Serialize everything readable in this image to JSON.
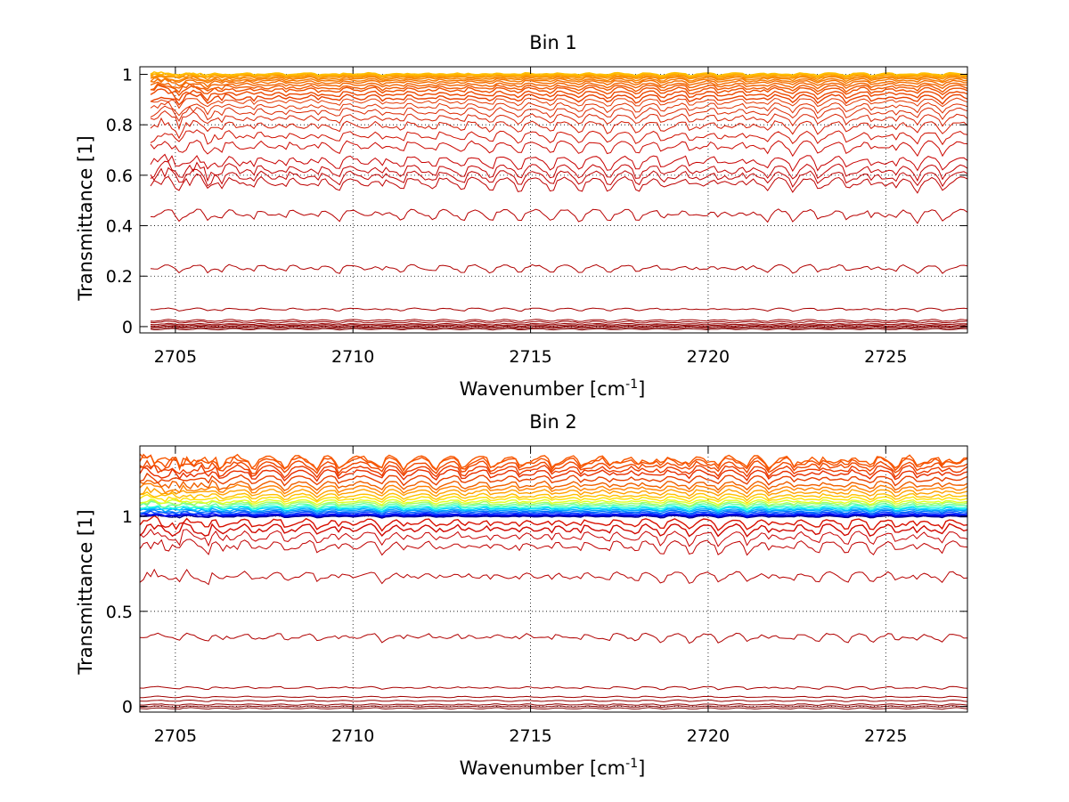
{
  "chart_data": [
    {
      "type": "line",
      "title": "Bin 1",
      "xlabel": "Wavenumber [cm",
      "xlabel_sup": "-1",
      "xlabel_end": "]",
      "ylabel": "Transmittance [1]",
      "xlim": [
        2704,
        2727.3
      ],
      "ylim": [
        -0.025,
        1.03
      ],
      "xticks": [
        2705,
        2710,
        2715,
        2720,
        2725
      ],
      "xticklabels": [
        "2705",
        "2710",
        "2715",
        "2720",
        "2725"
      ],
      "yticks": [
        0,
        0.2,
        0.4,
        0.6,
        0.8,
        1
      ],
      "yticklabels": [
        "0",
        "0.2",
        "0.4",
        "0.6",
        "0.8",
        "1"
      ],
      "grid": true,
      "x_start": 2704.3,
      "x_end": 2727.3,
      "num_points": 230,
      "series": [
        {
          "level": -0.01,
          "color": "#800000",
          "amp": 0.002
        },
        {
          "level": -0.005,
          "color": "#880000",
          "amp": 0.002
        },
        {
          "level": 0.0,
          "color": "#8b0000",
          "amp": 0.002
        },
        {
          "level": 0.005,
          "color": "#900000",
          "amp": 0.002
        },
        {
          "level": 0.01,
          "color": "#950000",
          "amp": 0.002
        },
        {
          "level": 0.018,
          "color": "#990000",
          "amp": 0.003
        },
        {
          "level": 0.025,
          "color": "#a00000",
          "amp": 0.003
        },
        {
          "level": 0.07,
          "color": "#a80000",
          "amp": 0.003
        },
        {
          "level": 0.235,
          "color": "#b00000",
          "amp": 0.008
        },
        {
          "level": 0.45,
          "color": "#b80000",
          "amp": 0.012
        },
        {
          "level": 0.575,
          "color": "#be0000",
          "amp": 0.014
        },
        {
          "level": 0.6,
          "color": "#c00000",
          "amp": 0.014
        },
        {
          "level": 0.625,
          "color": "#c40000",
          "amp": 0.014
        },
        {
          "level": 0.66,
          "color": "#c80000",
          "amp": 0.014
        },
        {
          "level": 0.72,
          "color": "#cc0800",
          "amp": 0.013
        },
        {
          "level": 0.76,
          "color": "#d01000",
          "amp": 0.012
        },
        {
          "level": 0.8,
          "color": "#d41800",
          "amp": 0.012
        },
        {
          "level": 0.83,
          "color": "#d82000",
          "amp": 0.01
        },
        {
          "level": 0.855,
          "color": "#dc2800",
          "amp": 0.01
        },
        {
          "level": 0.875,
          "color": "#e03000",
          "amp": 0.009
        },
        {
          "level": 0.895,
          "color": "#e43800",
          "amp": 0.008
        },
        {
          "level": 0.91,
          "color": "#e84000",
          "amp": 0.008
        },
        {
          "level": 0.925,
          "color": "#ec4800",
          "amp": 0.007
        },
        {
          "level": 0.94,
          "color": "#ee5000",
          "amp": 0.007
        },
        {
          "level": 0.95,
          "color": "#f05a00",
          "amp": 0.006
        },
        {
          "level": 0.96,
          "color": "#f26400",
          "amp": 0.005
        },
        {
          "level": 0.97,
          "color": "#f46e00",
          "amp": 0.005
        },
        {
          "level": 0.978,
          "color": "#f67800",
          "amp": 0.004
        },
        {
          "level": 0.985,
          "color": "#f88400",
          "amp": 0.004
        },
        {
          "level": 0.99,
          "color": "#fa9000",
          "amp": 0.003
        },
        {
          "level": 0.995,
          "color": "#fc9c00",
          "amp": 0.003
        },
        {
          "level": 0.998,
          "color": "#fda800",
          "amp": 0.003
        },
        {
          "level": 1.0,
          "color": "#feb400",
          "amp": 0.003
        },
        {
          "level": 1.003,
          "color": "#ffc000",
          "amp": 0.003
        }
      ]
    },
    {
      "type": "line",
      "title": "Bin 2",
      "xlabel": "Wavenumber [cm",
      "xlabel_sup": "-1",
      "xlabel_end": "]",
      "ylabel": "Transmittance [1]",
      "xlim": [
        2704,
        2727.3
      ],
      "ylim": [
        -0.03,
        1.37
      ],
      "xticks": [
        2705,
        2710,
        2715,
        2720,
        2725
      ],
      "xticklabels": [
        "2705",
        "2710",
        "2715",
        "2720",
        "2725"
      ],
      "yticks": [
        0,
        0.5,
        1
      ],
      "yticklabels": [
        "0",
        "0.5",
        "1"
      ],
      "grid": true,
      "x_start": 2704,
      "x_end": 2727.3,
      "num_points": 230,
      "series": [
        {
          "level": -0.01,
          "color": "#800000",
          "amp": 0.003
        },
        {
          "level": 0.0,
          "color": "#880000",
          "amp": 0.003
        },
        {
          "level": 0.01,
          "color": "#900000",
          "amp": 0.003
        },
        {
          "level": 0.03,
          "color": "#980000",
          "amp": 0.003
        },
        {
          "level": 0.05,
          "color": "#a00000",
          "amp": 0.003
        },
        {
          "level": 0.1,
          "color": "#a80000",
          "amp": 0.004
        },
        {
          "level": 0.37,
          "color": "#b00000",
          "amp": 0.012
        },
        {
          "level": 0.69,
          "color": "#b80000",
          "amp": 0.014
        },
        {
          "level": 0.85,
          "color": "#c00000",
          "amp": 0.018
        },
        {
          "level": 0.9,
          "color": "#c80000",
          "amp": 0.018
        },
        {
          "level": 0.94,
          "color": "#d00800",
          "amp": 0.016
        },
        {
          "level": 0.97,
          "color": "#d81000",
          "amp": 0.014
        },
        {
          "level": 1.0,
          "color": "#00008f",
          "amp": 0.003
        },
        {
          "level": 1.005,
          "color": "#0000cc",
          "amp": 0.003
        },
        {
          "level": 1.01,
          "color": "#0010ff",
          "amp": 0.003
        },
        {
          "level": 1.018,
          "color": "#0040ff",
          "amp": 0.004
        },
        {
          "level": 1.026,
          "color": "#0070ff",
          "amp": 0.004
        },
        {
          "level": 1.034,
          "color": "#00a0ff",
          "amp": 0.004
        },
        {
          "level": 1.042,
          "color": "#00d0ff",
          "amp": 0.005
        },
        {
          "level": 1.05,
          "color": "#20ffdf",
          "amp": 0.005
        },
        {
          "level": 1.06,
          "color": "#60ff9f",
          "amp": 0.006
        },
        {
          "level": 1.07,
          "color": "#a0ff60",
          "amp": 0.006
        },
        {
          "level": 1.08,
          "color": "#dfff20",
          "amp": 0.006
        },
        {
          "level": 1.095,
          "color": "#ffe000",
          "amp": 0.007
        },
        {
          "level": 1.11,
          "color": "#ffc000",
          "amp": 0.008
        },
        {
          "level": 1.13,
          "color": "#ffa000",
          "amp": 0.009
        },
        {
          "level": 1.15,
          "color": "#ff8000",
          "amp": 0.01
        },
        {
          "level": 1.17,
          "color": "#f06000",
          "amp": 0.011
        },
        {
          "level": 1.2,
          "color": "#e84000",
          "amp": 0.012
        },
        {
          "level": 1.23,
          "color": "#e83000",
          "amp": 0.013
        },
        {
          "level": 1.25,
          "color": "#ec3c00",
          "amp": 0.014
        },
        {
          "level": 1.27,
          "color": "#f04800",
          "amp": 0.015
        },
        {
          "level": 1.29,
          "color": "#f45000",
          "amp": 0.016
        },
        {
          "level": 1.3,
          "color": "#f85800",
          "amp": 0.018
        }
      ]
    }
  ]
}
